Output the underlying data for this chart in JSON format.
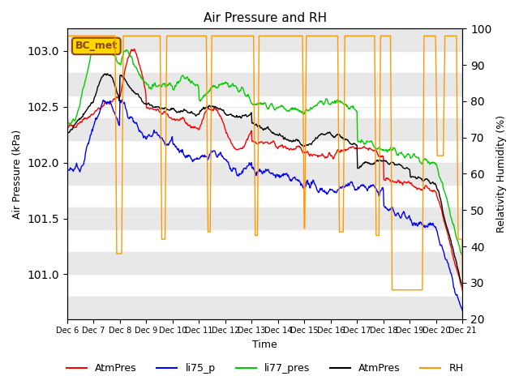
{
  "title": "Air Pressure and RH",
  "xlabel": "Time",
  "ylabel_left": "Air Pressure (kPa)",
  "ylabel_right": "Relativity Humidity (%)",
  "ylim_left": [
    100.6,
    103.2
  ],
  "ylim_right": [
    20,
    100
  ],
  "yticks_left": [
    100.6,
    100.8,
    101.0,
    101.2,
    101.4,
    101.6,
    101.8,
    102.0,
    102.2,
    102.4,
    102.6,
    102.8,
    103.0,
    103.2
  ],
  "yticks_right": [
    20,
    30,
    40,
    50,
    60,
    70,
    80,
    90,
    100
  ],
  "xtick_labels": [
    "Dec 6",
    "Dec 7",
    "Dec 8",
    "Dec 9",
    "Dec 10",
    "Dec 11",
    "Dec 12",
    "Dec 13",
    "Dec 14",
    "Dec 15",
    "Dec 16",
    "Dec 17",
    "Dec 18",
    "Dec 19",
    "Dec 20",
    "Dec 21"
  ],
  "n_days": 15,
  "points_per_day": 48,
  "background_color": "#ffffff",
  "grid_color": "#e0e0e0",
  "annotation_text": "BC_met",
  "annotation_color": "#8B4513",
  "annotation_bg": "#FFD700",
  "series_colors": {
    "AtmPres_red": "#ff0000",
    "li75_p": "#0000ff",
    "li77_pres": "#00cc00",
    "AtmPres_black": "#000000",
    "RH": "#ff9900"
  },
  "legend_labels": [
    "AtmPres",
    "li75_p",
    "li77_pres",
    "AtmPres",
    "RH"
  ],
  "legend_colors": [
    "#ff0000",
    "#0000ff",
    "#00cc00",
    "#000000",
    "#ff9900"
  ]
}
